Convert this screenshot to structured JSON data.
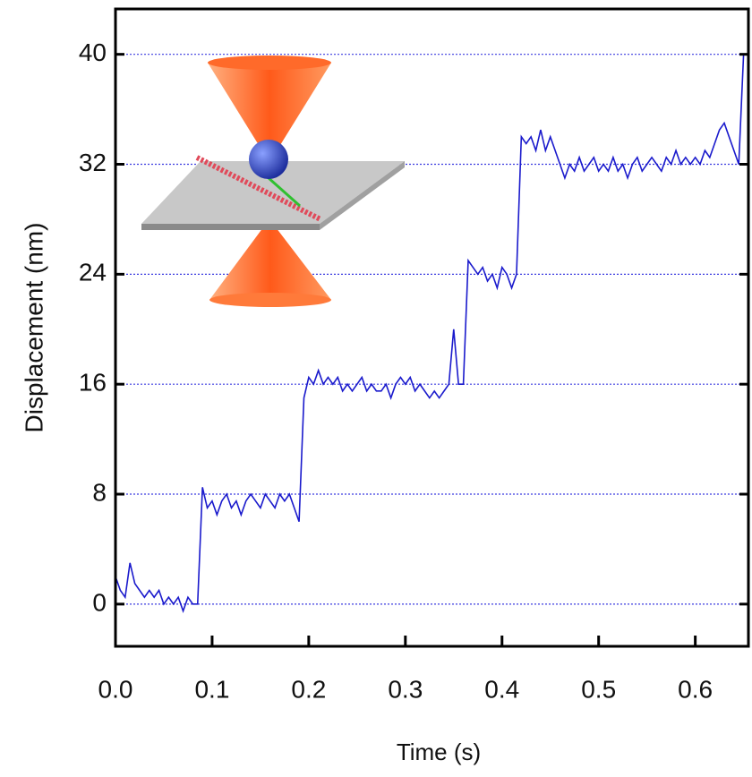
{
  "chart_data": {
    "type": "line",
    "x_label": "Time (s)",
    "y_label": "Displacement (nm)",
    "x": [
      0,
      0.005,
      0.01,
      0.015,
      0.02,
      0.025,
      0.03,
      0.035,
      0.04,
      0.045,
      0.05,
      0.055,
      0.06,
      0.065,
      0.07,
      0.075,
      0.08,
      0.085,
      0.09,
      0.095,
      0.1,
      0.105,
      0.11,
      0.115,
      0.12,
      0.125,
      0.13,
      0.135,
      0.14,
      0.145,
      0.15,
      0.155,
      0.16,
      0.165,
      0.17,
      0.175,
      0.18,
      0.185,
      0.19,
      0.195,
      0.2,
      0.205,
      0.21,
      0.215,
      0.22,
      0.225,
      0.23,
      0.235,
      0.24,
      0.245,
      0.25,
      0.255,
      0.26,
      0.265,
      0.27,
      0.275,
      0.28,
      0.285,
      0.29,
      0.295,
      0.3,
      0.305,
      0.31,
      0.315,
      0.32,
      0.325,
      0.33,
      0.335,
      0.34,
      0.345,
      0.35,
      0.355,
      0.36,
      0.365,
      0.37,
      0.375,
      0.38,
      0.385,
      0.39,
      0.395,
      0.4,
      0.405,
      0.41,
      0.415,
      0.42,
      0.425,
      0.43,
      0.435,
      0.44,
      0.445,
      0.45,
      0.455,
      0.46,
      0.465,
      0.47,
      0.475,
      0.48,
      0.485,
      0.49,
      0.495,
      0.5,
      0.505,
      0.51,
      0.515,
      0.52,
      0.525,
      0.53,
      0.535,
      0.54,
      0.545,
      0.55,
      0.555,
      0.56,
      0.565,
      0.57,
      0.575,
      0.58,
      0.585,
      0.59,
      0.595,
      0.6,
      0.605,
      0.61,
      0.615,
      0.62,
      0.625,
      0.63,
      0.635,
      0.64,
      0.645,
      0.65,
      0.655
    ],
    "values": [
      2,
      1,
      0.5,
      3,
      1.5,
      1,
      0.5,
      1,
      0.5,
      1,
      0,
      0.5,
      0,
      0.5,
      -0.5,
      0.5,
      0,
      0,
      8.5,
      7,
      7.5,
      6.5,
      7.5,
      8,
      7,
      7.5,
      6.5,
      7.5,
      8,
      7.5,
      7,
      8,
      7.5,
      7,
      8,
      7.5,
      8,
      7,
      6,
      15,
      16.5,
      16,
      17,
      16,
      16.5,
      16,
      16.5,
      15.5,
      16,
      15.5,
      16,
      16.5,
      15.5,
      16,
      15.5,
      15.5,
      16,
      15,
      16,
      16.5,
      16,
      16.5,
      15.5,
      16,
      15.5,
      15,
      15.5,
      15,
      15.5,
      16,
      20,
      16,
      16,
      25,
      24.5,
      24,
      24.5,
      23.5,
      24,
      23,
      24.5,
      24,
      23,
      24,
      34,
      33.5,
      34,
      33,
      34.5,
      33,
      34,
      33,
      32,
      31,
      32,
      31.5,
      32.5,
      31.5,
      32,
      32.5,
      31.5,
      32,
      31.5,
      32.5,
      31.5,
      32,
      31,
      32,
      32.5,
      31.5,
      32,
      32.5,
      32,
      31.5,
      32.5,
      32,
      33,
      32,
      32.5,
      32,
      32.5,
      32,
      33,
      32.5,
      33.5,
      34.5,
      35,
      34,
      33,
      32,
      40,
      40
    ],
    "color": "#1a1acc",
    "xlim": [
      0,
      0.655
    ],
    "ylim": [
      -3.07,
      43.3
    ],
    "xticks": [
      {
        "value": 0,
        "label": "0.0"
      },
      0.1,
      0.2,
      0.3,
      0.4,
      0.5,
      0.6
    ],
    "yticks": [
      0,
      8,
      16,
      24,
      32,
      40
    ],
    "grid": true,
    "grid_color": "#3b3be0"
  }
}
